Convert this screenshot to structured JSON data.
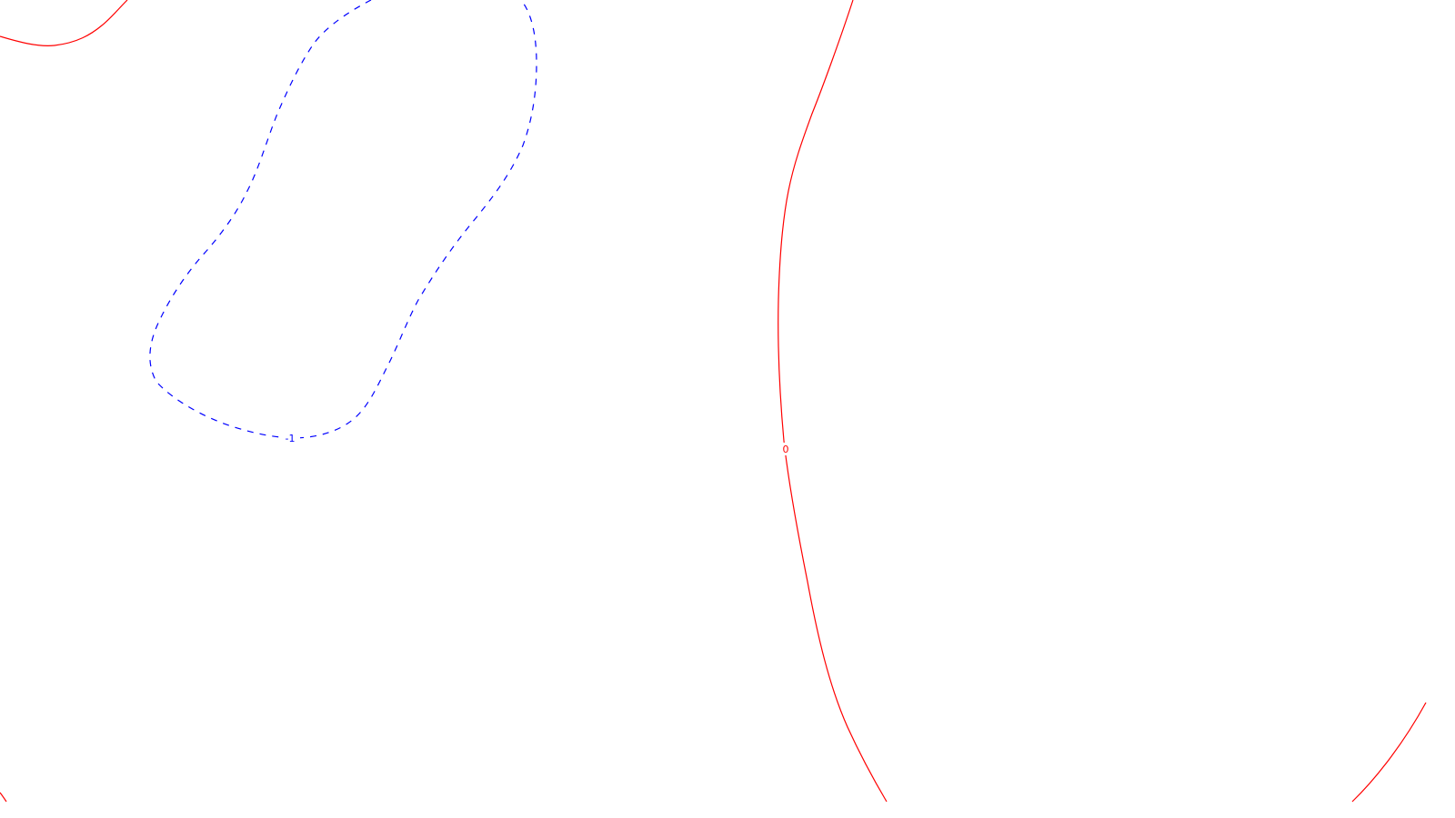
{
  "chart_data": {
    "type": "contour",
    "title": "",
    "xlabel": "",
    "ylabel": "",
    "grid": false,
    "legend": "none",
    "colors": {
      "zero_level": "#ff0000",
      "negative_level": "#0000ff",
      "background": "#ffffff"
    },
    "levels": [
      {
        "name": "level-0",
        "value": 0,
        "label": "0",
        "line_style": "solid",
        "color": "#ff0000"
      },
      {
        "name": "level-neg1",
        "value": -1,
        "label": "-1",
        "line_style": "dashed",
        "color": "#0000ff"
      }
    ]
  }
}
